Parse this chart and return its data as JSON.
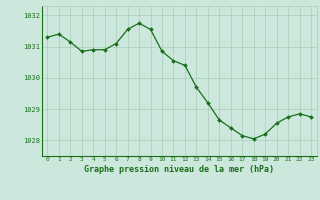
{
  "x": [
    0,
    1,
    2,
    3,
    4,
    5,
    6,
    7,
    8,
    9,
    10,
    11,
    12,
    13,
    14,
    15,
    16,
    17,
    18,
    19,
    20,
    21,
    22,
    23
  ],
  "y": [
    1031.3,
    1031.4,
    1031.15,
    1030.85,
    1030.9,
    1030.9,
    1031.1,
    1031.55,
    1031.75,
    1031.55,
    1030.85,
    1030.55,
    1030.4,
    1029.7,
    1029.2,
    1028.65,
    1028.4,
    1028.15,
    1028.05,
    1028.2,
    1028.55,
    1028.75,
    1028.85,
    1028.75
  ],
  "line_color": "#1a6e1a",
  "marker_color": "#1a6e1a",
  "bg_color": "#cce8dc",
  "grid_color": "#aaccbc",
  "xlabel": "Graphe pression niveau de la mer (hPa)",
  "xlabel_color": "#1a6e1a",
  "tick_color": "#1a6e1a",
  "ylim": [
    1027.5,
    1032.3
  ],
  "yticks": [
    1028,
    1029,
    1030,
    1031,
    1032
  ],
  "xticks": [
    0,
    1,
    2,
    3,
    4,
    5,
    6,
    7,
    8,
    9,
    10,
    11,
    12,
    13,
    14,
    15,
    16,
    17,
    18,
    19,
    20,
    21,
    22,
    23
  ]
}
